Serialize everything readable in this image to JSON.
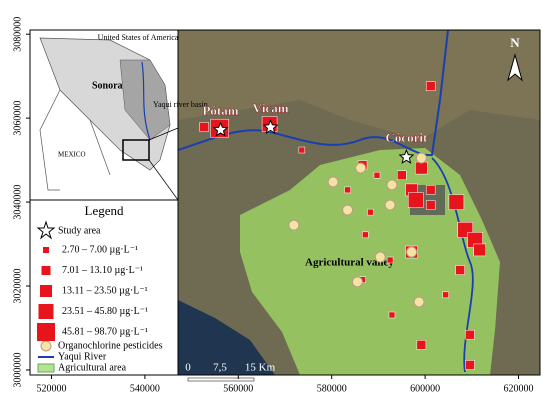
{
  "map": {
    "xlim": [
      515400,
      624600
    ],
    "ylim": [
      2998800,
      3081000
    ],
    "xticks": [
      520000,
      540000,
      560000,
      580000,
      600000,
      620000
    ],
    "yticks": [
      3000000,
      3020000,
      3040000,
      3060000,
      3080000
    ]
  },
  "places": [
    {
      "name": "Pótam",
      "x": 556200,
      "y": 3057200
    },
    {
      "name": "Vícam",
      "x": 566900,
      "y": 3057800
    },
    {
      "name": "Cócorit",
      "x": 596000,
      "y": 3050700
    }
  ],
  "north": "N",
  "valley_label": "Agricultural valley",
  "scale_bar": [
    "0",
    "7,5",
    "15 Km"
  ],
  "inset": {
    "usa": "United States of America",
    "sonora": "Sonora",
    "basin": "Yaqui river basin",
    "mexico": "MEXICO"
  },
  "legend": {
    "title": "Legend",
    "study_area": "Study area",
    "classes": [
      "2.70 – 7.00 µg·L⁻¹",
      "7.01 – 13.10 µg·L⁻¹",
      "13.11 – 23.50 µg·L⁻¹",
      "23.51 – 45.80 µg·L⁻¹",
      "45.81 – 98.70 µg·L⁻¹"
    ],
    "pesticides": "Organochlorine pesticides",
    "river": "Yaqui River",
    "agri": "Agricultural area"
  },
  "sites": [
    {
      "x": 552700,
      "y": 3057900,
      "class": 1
    },
    {
      "x": 556000,
      "y": 3057600,
      "class": 4
    },
    {
      "x": 566700,
      "y": 3058600,
      "class": 3
    },
    {
      "x": 573600,
      "y": 3052400,
      "class": 0
    },
    {
      "x": 601200,
      "y": 3067600,
      "class": 1
    },
    {
      "x": 586600,
      "y": 3048800,
      "class": 1
    },
    {
      "x": 599200,
      "y": 3048100,
      "class": 2
    },
    {
      "x": 595000,
      "y": 3046400,
      "class": 1
    },
    {
      "x": 589700,
      "y": 3046400,
      "class": 0
    },
    {
      "x": 597100,
      "y": 3042900,
      "class": 2
    },
    {
      "x": 601200,
      "y": 3042900,
      "class": 1
    },
    {
      "x": 598000,
      "y": 3040500,
      "class": 3
    },
    {
      "x": 601200,
      "y": 3039300,
      "class": 1
    },
    {
      "x": 606700,
      "y": 3040000,
      "class": 3
    },
    {
      "x": 583400,
      "y": 3042900,
      "class": 0
    },
    {
      "x": 608600,
      "y": 3033400,
      "class": 3
    },
    {
      "x": 610700,
      "y": 3031000,
      "class": 3
    },
    {
      "x": 611700,
      "y": 3028600,
      "class": 2
    },
    {
      "x": 597100,
      "y": 3028100,
      "class": 2
    },
    {
      "x": 588300,
      "y": 3037600,
      "class": 0
    },
    {
      "x": 592500,
      "y": 3026200,
      "class": 0
    },
    {
      "x": 586600,
      "y": 3021500,
      "class": 0
    },
    {
      "x": 592900,
      "y": 3013100,
      "class": 0
    },
    {
      "x": 607500,
      "y": 3023800,
      "class": 1
    },
    {
      "x": 604400,
      "y": 3017900,
      "class": 0
    },
    {
      "x": 609600,
      "y": 3008400,
      "class": 1
    },
    {
      "x": 609600,
      "y": 3001200,
      "class": 1
    },
    {
      "x": 599200,
      "y": 3006000,
      "class": 1
    },
    {
      "x": 587200,
      "y": 3032200,
      "class": 0
    }
  ],
  "pesticide_sites": [
    {
      "x": 580300,
      "y": 3044800
    },
    {
      "x": 586200,
      "y": 3048100
    },
    {
      "x": 592900,
      "y": 3044100
    },
    {
      "x": 599200,
      "y": 3050500
    },
    {
      "x": 592500,
      "y": 3039300
    },
    {
      "x": 571900,
      "y": 3034500
    },
    {
      "x": 583400,
      "y": 3038100
    },
    {
      "x": 590400,
      "y": 3026900
    },
    {
      "x": 597100,
      "y": 3028100
    },
    {
      "x": 585500,
      "y": 3021000
    },
    {
      "x": 598700,
      "y": 3016200
    }
  ]
}
